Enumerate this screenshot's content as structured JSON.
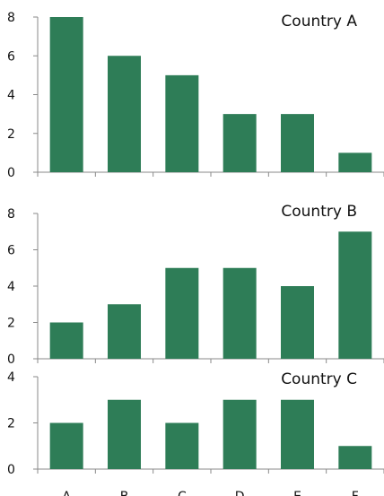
{
  "chart_data": {
    "type": "bar",
    "layout": "three vertically stacked panels sharing the x axis",
    "bar_color": "#2e7d57",
    "grid": false,
    "legend": "none",
    "categories": [
      "A",
      "B",
      "C",
      "D",
      "E",
      "F"
    ],
    "panels": [
      {
        "title": "Country A",
        "values": [
          8,
          6,
          5,
          3,
          3,
          1
        ],
        "ylim": [
          0,
          8
        ],
        "yticks": [
          0,
          2,
          4,
          6,
          8
        ]
      },
      {
        "title": "Country B",
        "values": [
          2,
          3,
          5,
          5,
          4,
          7
        ],
        "ylim": [
          0,
          8
        ],
        "yticks": [
          0,
          2,
          4,
          6,
          8
        ]
      },
      {
        "title": "Country C",
        "values": [
          2,
          3,
          2,
          3,
          3,
          1
        ],
        "ylim": [
          0,
          4
        ],
        "yticks": [
          0,
          2,
          4
        ]
      }
    ]
  }
}
